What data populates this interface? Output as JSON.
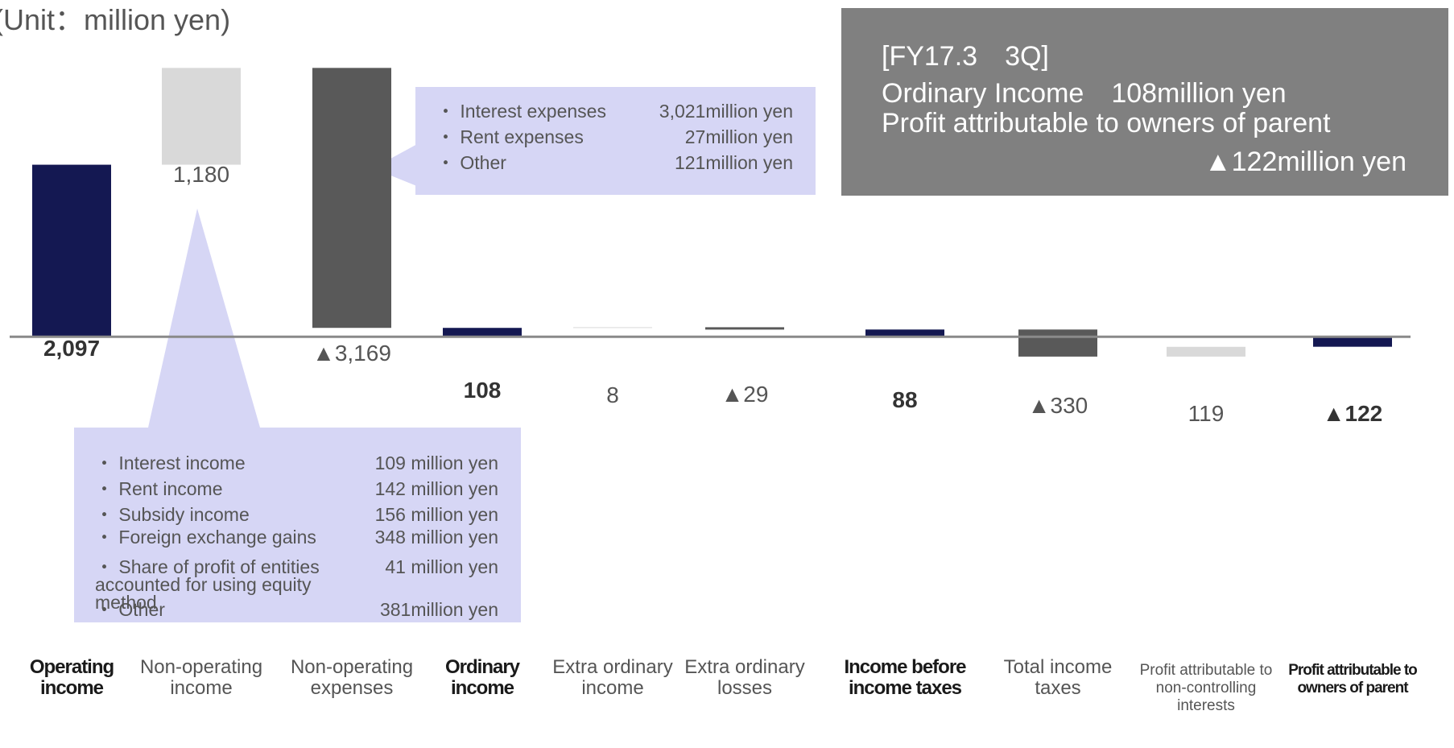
{
  "chart_data": {
    "type": "waterfall",
    "unit_note": "(Unit：million yen)",
    "categories": [
      "Operating income",
      "Non-operating income",
      "Non-operating expenses",
      "Ordinary income",
      "Extra ordinary income",
      "Extra ordinary losses",
      "Income before income taxes",
      "Total income taxes",
      "Profit attributable to non-controlling interests",
      "Profit attributable to owners of parent"
    ],
    "values": [
      2097,
      1180,
      -3169,
      108,
      8,
      -29,
      88,
      -330,
      119,
      -122
    ],
    "value_labels": [
      "2,097",
      "1,180",
      "▲3,169",
      "108",
      "8",
      "▲29",
      "88",
      "▲330",
      "119",
      "▲122"
    ],
    "measure": [
      "total",
      "relative",
      "relative",
      "total",
      "relative",
      "relative",
      "total",
      "relative",
      "relative",
      "total"
    ],
    "colors": {
      "total": "#141852",
      "increase": "#d9d9d9",
      "decrease": "#595959"
    },
    "ylim": [
      -2000,
      3300
    ]
  },
  "callouts": [
    {
      "items": [
        {
          "name": "・ Interest expenses",
          "amount": "3,021million yen"
        },
        {
          "name": "・ Rent expenses",
          "amount": "27million yen"
        },
        {
          "name": "・ Other",
          "amount": "121million yen"
        }
      ]
    },
    {
      "items": [
        {
          "name": "・ Interest income",
          "amount": "109 million yen"
        },
        {
          "name": "・ Rent income",
          "amount": "142 million yen"
        },
        {
          "name": "・ Subsidy income",
          "amount": "156 million yen"
        },
        {
          "name": "・ Foreign exchange gains",
          "amount": "348 million yen"
        },
        {
          "name": "・ Share of profit of entities accounted for using equity method",
          "amount": "41 million yen"
        },
        {
          "name": "・ Other",
          "amount": "381million yen"
        }
      ]
    }
  ],
  "summary_box": {
    "lines": [
      "[FY17.3　3Q]",
      "Ordinary Income　108million yen",
      "Profit attributable to owners of parent",
      "▲122million yen"
    ]
  }
}
